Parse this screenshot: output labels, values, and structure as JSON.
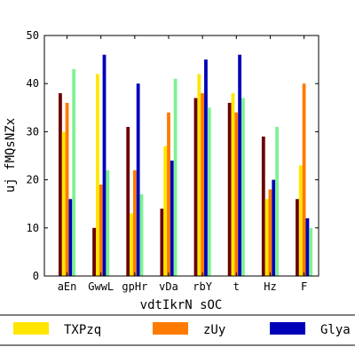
{
  "chart_data": {
    "type": "bar",
    "xlabel": "vdtIkrN sOC",
    "ylabel": "uj fMQsNZx",
    "ylim": [
      0,
      50
    ],
    "yticks": [
      0,
      10,
      20,
      30,
      40,
      50
    ],
    "grid": false,
    "legend_position": "bottom",
    "categories": [
      "aEn",
      "GwwL",
      "gpHr",
      "vDa",
      "rbY",
      "t",
      "Hz",
      "F"
    ],
    "series": [
      {
        "name": "",
        "color": "#6b0000",
        "values": [
          38,
          10,
          31,
          14,
          37,
          36,
          29,
          16
        ],
        "in_legend": false
      },
      {
        "name": "TXPzq",
        "color": "#ffe600",
        "values": [
          30,
          42,
          13,
          27,
          42,
          38,
          16,
          23
        ],
        "in_legend": true
      },
      {
        "name": "zUy",
        "color": "#ff7b00",
        "values": [
          36,
          19,
          22,
          34,
          38,
          34,
          18,
          40
        ],
        "in_legend": true
      },
      {
        "name": "Glya",
        "color": "#0000b8",
        "values": [
          16,
          46,
          40,
          24,
          45,
          46,
          20,
          12
        ],
        "in_legend": true
      },
      {
        "name": "",
        "color": "#7df294",
        "values": [
          43,
          22,
          17,
          41,
          35,
          37,
          31,
          10
        ],
        "in_legend": false
      }
    ]
  }
}
